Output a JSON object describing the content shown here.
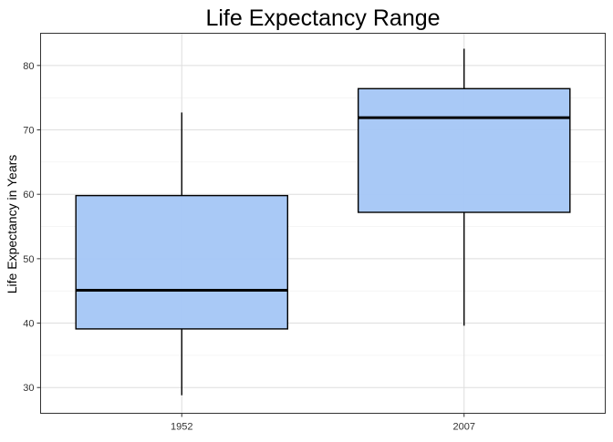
{
  "colors": {
    "box_fill": "#a4c6f5",
    "box_stroke": "#000000",
    "grid_major": "#dedede",
    "grid_minor": "#efefef",
    "panel_border": "#333333",
    "text": "#000000",
    "tick_text": "#333333"
  },
  "chart_data": {
    "type": "box",
    "title": "Life Expectancy Range",
    "xlabel": "",
    "ylabel": "Life Expectancy in Years",
    "ylim": [
      26,
      85
    ],
    "yticks": [
      30,
      40,
      50,
      60,
      70,
      80
    ],
    "yticks_minor": [
      35,
      45,
      55,
      65,
      75
    ],
    "categories": [
      "1952",
      "2007"
    ],
    "boxes": [
      {
        "category": "1952",
        "whisker_low": 28.8,
        "q1": 39.1,
        "median": 45.1,
        "q3": 59.8,
        "whisker_high": 72.7
      },
      {
        "category": "2007",
        "whisker_low": 39.6,
        "q1": 57.2,
        "median": 71.9,
        "q3": 76.4,
        "whisker_high": 82.6
      }
    ],
    "grid": true
  }
}
